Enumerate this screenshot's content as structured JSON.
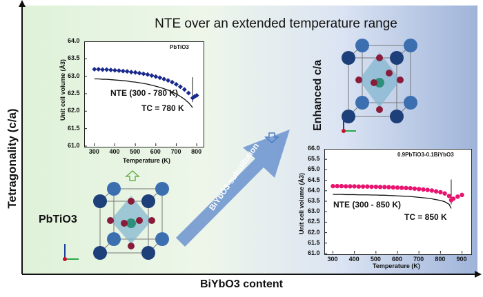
{
  "title": "NTE over an extended temperature range",
  "y_axis_label": "Tetragonality (c/a)",
  "x_axis_label": "BiYbO3 content",
  "left": {
    "compound_label": "PbTiO3",
    "plot_tag": "PbTiO3",
    "nte_note": "NTE (300 - 780 K)",
    "tc_note": "TC = 780 K"
  },
  "right": {
    "enhanced_label": "Enhanced c/a",
    "plot_tag": "0.9PbTiO3-0.1BiYbO3",
    "nte_note": "NTE (300 - 850 K)",
    "tc_note": "TC = 850 K"
  },
  "arrow_label": "BiYbO3-substitution",
  "colors": {
    "left_series": "#1a2a8c",
    "right_series": "#e8146f",
    "arrow": "#5a86c8"
  },
  "chart_data": [
    {
      "type": "scatter",
      "xlabel": "Temperature (K)",
      "ylabel": "Unit cell volume (Å3)",
      "xlim": [
        250,
        830
      ],
      "ylim": [
        61.0,
        64.0
      ],
      "x_ticks": [
        "300",
        "400",
        "500",
        "600",
        "700",
        "800"
      ],
      "y_ticks": [
        "61.0",
        "61.5",
        "62.0",
        "62.5",
        "63.0",
        "63.5",
        "64.0"
      ],
      "series": [
        {
          "x": [
            300,
            320,
            340,
            360,
            380,
            400,
            420,
            440,
            460,
            480,
            500,
            520,
            540,
            560,
            580,
            600,
            620,
            640,
            660,
            680,
            700,
            720,
            740,
            760,
            780,
            790,
            800
          ],
          "y": [
            63.2,
            63.2,
            63.19,
            63.19,
            63.18,
            63.17,
            63.16,
            63.15,
            63.14,
            63.12,
            63.11,
            63.09,
            63.07,
            63.05,
            63.02,
            62.99,
            62.96,
            62.92,
            62.88,
            62.83,
            62.77,
            62.7,
            62.62,
            62.52,
            62.38,
            62.42,
            62.45
          ]
        }
      ]
    },
    {
      "type": "scatter",
      "xlabel": "Temperature (K)",
      "ylabel": "Unit cell volume (Å3)",
      "xlim": [
        260,
        940
      ],
      "ylim": [
        61.0,
        66.0
      ],
      "x_ticks": [
        "300",
        "400",
        "500",
        "600",
        "700",
        "800",
        "900"
      ],
      "y_ticks": [
        "61.0",
        "61.5",
        "62.0",
        "62.5",
        "63.0",
        "63.5",
        "64.0",
        "64.5",
        "65.0",
        "65.5",
        "66.0"
      ],
      "series": [
        {
          "x": [
            300,
            320,
            340,
            360,
            380,
            400,
            420,
            440,
            460,
            480,
            500,
            520,
            540,
            560,
            580,
            600,
            620,
            640,
            660,
            680,
            700,
            720,
            740,
            760,
            780,
            800,
            820,
            840,
            850,
            860,
            880,
            900
          ],
          "y": [
            64.22,
            64.22,
            64.22,
            64.21,
            64.21,
            64.21,
            64.2,
            64.2,
            64.2,
            64.19,
            64.19,
            64.18,
            64.18,
            64.17,
            64.16,
            64.15,
            64.14,
            64.13,
            64.12,
            64.1,
            64.08,
            64.06,
            64.04,
            64.01,
            63.97,
            63.93,
            63.87,
            63.75,
            63.55,
            63.62,
            63.72,
            63.8
          ]
        }
      ]
    }
  ]
}
